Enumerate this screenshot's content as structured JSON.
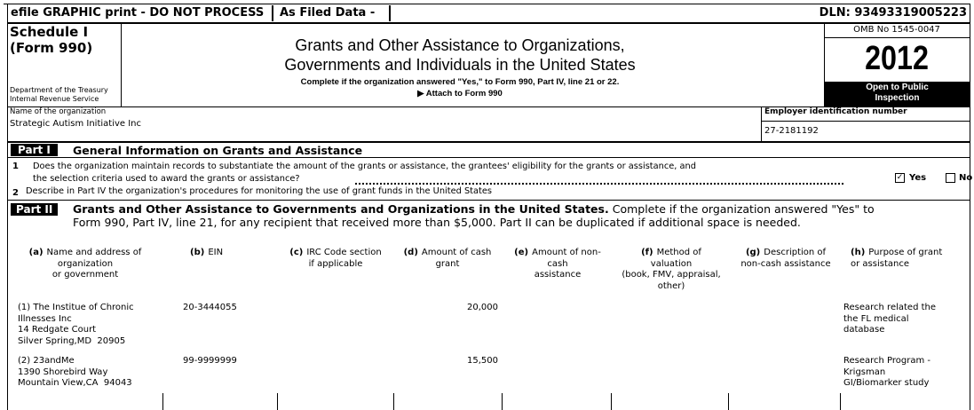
{
  "header": {
    "efile": "efile GRAPHIC print - DO NOT PROCESS",
    "filed": "As Filed Data -",
    "dln": "DLN: 93493319005223"
  },
  "form": {
    "schedule": "Schedule I",
    "form": "(Form 990)",
    "dept": [
      "Department of the Treasury",
      "Internal Revenue Service"
    ],
    "title": [
      "Grants and Other Assistance to Organizations,",
      "Governments and Individuals in the United States"
    ],
    "instruction": "Complete if the organization answered \"Yes,\" to Form 990, Part IV, line 21 or 22.",
    "attach": "▶ Attach to Form 990",
    "omb": "OMB No 1545-0047",
    "year": "2012",
    "inspection": [
      "Open to Public",
      "Inspection"
    ]
  },
  "organization": {
    "name_label": "Name of the organization",
    "name": "Strategic Autism Initiative Inc",
    "ein_label": "Employer identification number",
    "ein": "27-2181192"
  },
  "part1": {
    "label": "Part I",
    "title": "General Information on Grants and Assistance",
    "line1": {
      "number": "1",
      "text": [
        "Does the organization maintain records to substantiate the amount of the grants or assistance, the grantees' eligibility for the grants or assistance, and",
        "the selection criteria used to award the grants or assistance?"
      ],
      "yes": "Yes",
      "no": "No",
      "yes_checked": true
    },
    "line2": {
      "number": "2",
      "text": "Describe in Part IV the organization's procedures for monitoring the use of grant funds in the United States"
    }
  },
  "part2": {
    "label": "Part II",
    "title": "Grants and Other Assistance to Governments and Organizations in the United States.",
    "text": [
      "Complete if the organization answered \"Yes\" to",
      "Form 990, Part IV, line 21, for any recipient that received more than $5,000. Part II can be duplicated if additional space is needed."
    ],
    "columns": [
      {
        "letter": "(a)",
        "lines": [
          "Name and address of",
          "organization",
          "or government"
        ]
      },
      {
        "letter": "(b)",
        "lines": [
          "EIN"
        ]
      },
      {
        "letter": "(c)",
        "lines": [
          "IRC Code section",
          "if applicable"
        ]
      },
      {
        "letter": "(d)",
        "lines": [
          "Amount of cash",
          "grant"
        ]
      },
      {
        "letter": "(e)",
        "lines": [
          "Amount of non-",
          "cash",
          "assistance"
        ]
      },
      {
        "letter": "(f)",
        "lines": [
          "Method of",
          "valuation",
          "(book, FMV, appraisal,",
          "other)"
        ]
      },
      {
        "letter": "(g)",
        "lines": [
          "Description of",
          "non-cash assistance"
        ]
      },
      {
        "letter": "(h)",
        "lines": [
          "Purpose of grant",
          "or assistance"
        ]
      }
    ],
    "rows": [
      {
        "name_address": [
          "(1) The Institue of Chronic",
          "Illnesses Inc",
          "14 Redgate Court",
          "Silver Spring,MD  20905"
        ],
        "ein": "20-3444055",
        "cash_grant": "20,000",
        "purpose": [
          "Research related the",
          "the FL medical",
          "database"
        ]
      },
      {
        "name_address": [
          "(2) 23andMe",
          "1390 Shorebird Way",
          "Mountain View,CA  94043"
        ],
        "ein": "99-9999999",
        "cash_grant": "15,500",
        "purpose": [
          "Research Program -",
          "Krigsman",
          "GI/Biomarker study"
        ]
      }
    ]
  }
}
